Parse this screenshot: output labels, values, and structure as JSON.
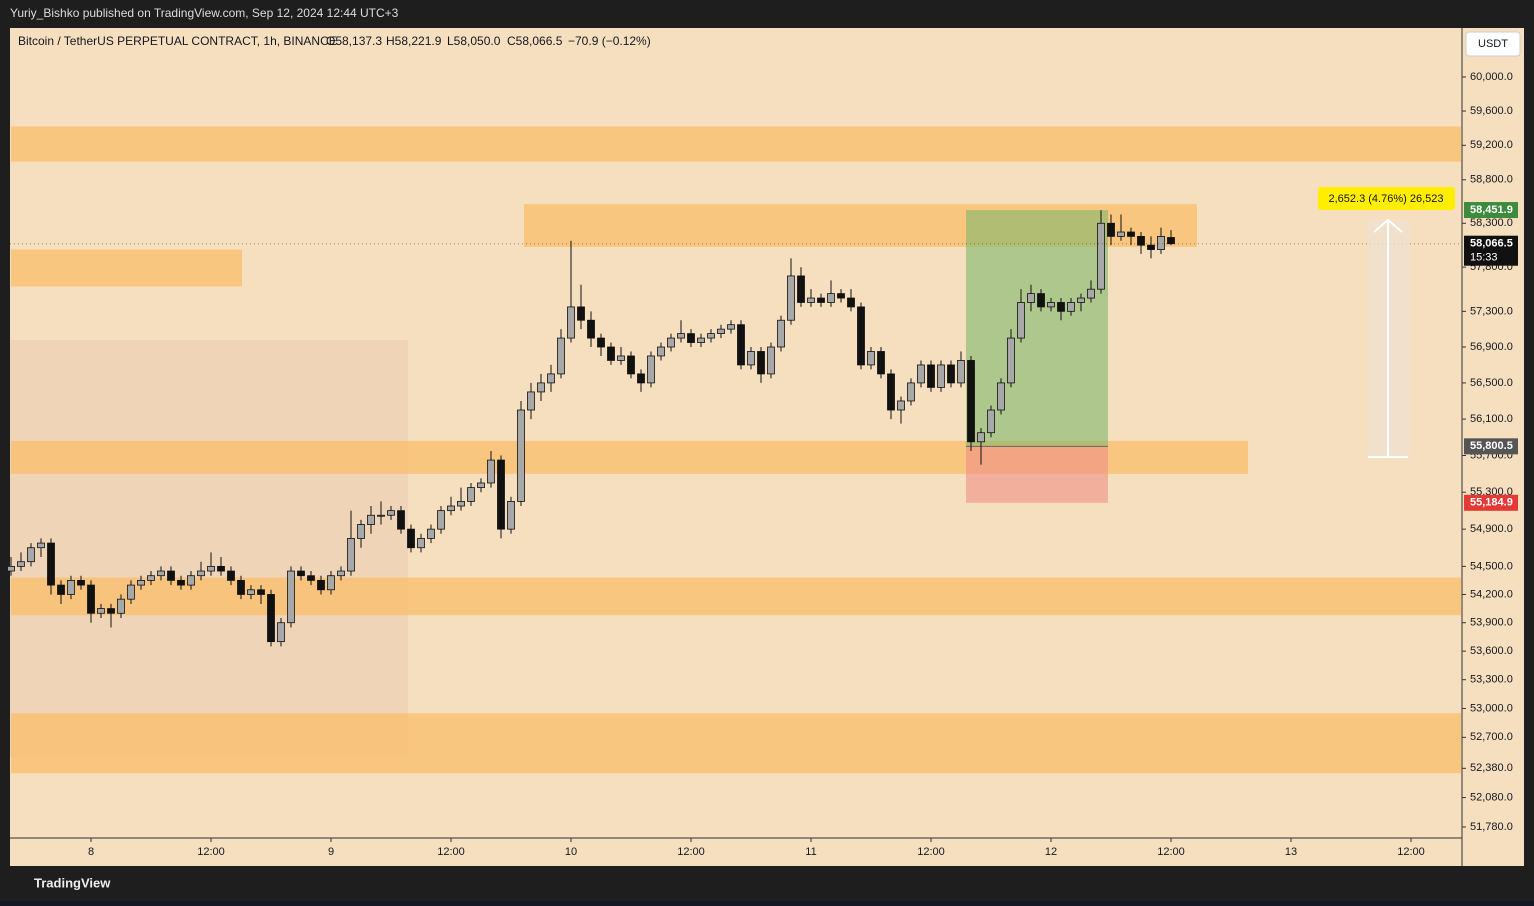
{
  "header": {
    "publisher": "Yuriy_Bishko published on TradingView.com, Sep 12, 2024 12:44 UTC+3",
    "footer": "TradingView",
    "currency": "USDT"
  },
  "chart_data": {
    "type": "candlestick",
    "title": "Bitcoin / TetherUS PERPETUAL CONTRACT, 1h, BINANCE",
    "ohlc_labels": [
      "O58,137.3",
      "H58,221.9",
      "L58,050.0",
      "C58,066.5",
      "−70.9 (−0.12%)"
    ],
    "log_scale": true,
    "grid": false,
    "up_color": "#a8a8a8",
    "down_color": "#111111",
    "ylim": [
      51668,
      60580
    ],
    "yticks": [
      {
        "value": 60000,
        "label": "60,000.0"
      },
      {
        "value": 59600,
        "label": "59,600.0"
      },
      {
        "value": 59200,
        "label": "59,200.0"
      },
      {
        "value": 58800,
        "label": "58,800.0"
      },
      {
        "value": 58300,
        "label": "58,300.0"
      },
      {
        "value": 57800,
        "label": "57,800.0"
      },
      {
        "value": 57300,
        "label": "57,300.0"
      },
      {
        "value": 56900,
        "label": "56,900.0"
      },
      {
        "value": 56500,
        "label": "56,500.0"
      },
      {
        "value": 56100,
        "label": "56,100.0"
      },
      {
        "value": 55700,
        "label": "55,700.0"
      },
      {
        "value": 55300,
        "label": "55,300.0"
      },
      {
        "value": 54900,
        "label": "54,900.0"
      },
      {
        "value": 54500,
        "label": "54,500.0"
      },
      {
        "value": 54200,
        "label": "54,200.0"
      },
      {
        "value": 53900,
        "label": "53,900.0"
      },
      {
        "value": 53600,
        "label": "53,600.0"
      },
      {
        "value": 53300,
        "label": "53,300.0"
      },
      {
        "value": 53000,
        "label": "53,000.0"
      },
      {
        "value": 52700,
        "label": "52,700.0"
      },
      {
        "value": 52380,
        "label": "52,380.0"
      },
      {
        "value": 52080,
        "label": "52,080.0"
      },
      {
        "value": 51780,
        "label": "51,780.0"
      }
    ],
    "xticks": [
      {
        "value": 8,
        "label": "8"
      },
      {
        "value": 20,
        "label": "12:00"
      },
      {
        "value": 32,
        "label": "9"
      },
      {
        "value": 44,
        "label": "12:00"
      },
      {
        "value": 56,
        "label": "10"
      },
      {
        "value": 68,
        "label": "12:00"
      },
      {
        "value": 80,
        "label": "11"
      },
      {
        "value": 92,
        "label": "12:00"
      },
      {
        "value": 104,
        "label": "12"
      },
      {
        "value": 116,
        "label": "12:00"
      },
      {
        "value": 128,
        "label": "13"
      },
      {
        "value": 140,
        "label": "12:00"
      }
    ],
    "candles": [
      [
        54450,
        54600,
        54400,
        54500
      ],
      [
        54500,
        54650,
        54450,
        54550
      ],
      [
        54550,
        54750,
        54500,
        54700
      ],
      [
        54700,
        54800,
        54600,
        54750
      ],
      [
        54750,
        54800,
        54200,
        54300
      ],
      [
        54300,
        54350,
        54100,
        54200
      ],
      [
        54200,
        54400,
        54150,
        54350
      ],
      [
        54350,
        54400,
        54250,
        54300
      ],
      [
        54300,
        54350,
        53900,
        54000
      ],
      [
        54000,
        54100,
        53950,
        54050
      ],
      [
        54050,
        54100,
        53850,
        54000
      ],
      [
        54000,
        54200,
        53950,
        54150
      ],
      [
        54150,
        54350,
        54100,
        54300
      ],
      [
        54300,
        54400,
        54250,
        54350
      ],
      [
        54350,
        54450,
        54300,
        54400
      ],
      [
        54400,
        54500,
        54350,
        54450
      ],
      [
        54450,
        54500,
        54300,
        54350
      ],
      [
        54350,
        54400,
        54250,
        54300
      ],
      [
        54300,
        54450,
        54250,
        54400
      ],
      [
        54400,
        54550,
        54350,
        54450
      ],
      [
        54450,
        54650,
        54400,
        54500
      ],
      [
        54500,
        54600,
        54400,
        54450
      ],
      [
        54450,
        54500,
        54300,
        54350
      ],
      [
        54350,
        54400,
        54150,
        54200
      ],
      [
        54200,
        54300,
        54150,
        54250
      ],
      [
        54250,
        54300,
        54100,
        54200
      ],
      [
        54200,
        54250,
        53650,
        53700
      ],
      [
        53700,
        53950,
        53650,
        53900
      ],
      [
        53900,
        54500,
        53850,
        54450
      ],
      [
        54450,
        54500,
        54350,
        54400
      ],
      [
        54400,
        54450,
        54300,
        54350
      ],
      [
        54350,
        54400,
        54200,
        54250
      ],
      [
        54250,
        54450,
        54200,
        54400
      ],
      [
        54400,
        54500,
        54350,
        54450
      ],
      [
        54450,
        55100,
        54400,
        54800
      ],
      [
        54800,
        55000,
        54700,
        54950
      ],
      [
        54950,
        55150,
        54850,
        55050
      ],
      [
        55050,
        55200,
        54950,
        55050
      ],
      [
        55050,
        55150,
        55000,
        55100
      ],
      [
        55100,
        55150,
        54850,
        54900
      ],
      [
        54900,
        54950,
        54650,
        54700
      ],
      [
        54700,
        54850,
        54650,
        54800
      ],
      [
        54800,
        54950,
        54750,
        54900
      ],
      [
        54900,
        55150,
        54850,
        55100
      ],
      [
        55100,
        55250,
        55050,
        55150
      ],
      [
        55150,
        55350,
        55100,
        55200
      ],
      [
        55200,
        55400,
        55150,
        55350
      ],
      [
        55350,
        55450,
        55300,
        55400
      ],
      [
        55400,
        55750,
        55350,
        55650
      ],
      [
        55650,
        55700,
        54800,
        54900
      ],
      [
        54900,
        55250,
        54850,
        55200
      ],
      [
        55200,
        56300,
        55150,
        56200
      ],
      [
        56200,
        56500,
        56100,
        56400
      ],
      [
        56400,
        56600,
        56300,
        56500
      ],
      [
        56500,
        56700,
        56400,
        56600
      ],
      [
        56600,
        57100,
        56550,
        57000
      ],
      [
        57000,
        58100,
        56950,
        57350
      ],
      [
        57350,
        57600,
        57100,
        57200
      ],
      [
        57200,
        57300,
        56900,
        57000
      ],
      [
        57000,
        57050,
        56800,
        56900
      ],
      [
        56900,
        56950,
        56700,
        56750
      ],
      [
        56750,
        56900,
        56700,
        56800
      ],
      [
        56800,
        56850,
        56550,
        56600
      ],
      [
        56600,
        56650,
        56400,
        56500
      ],
      [
        56500,
        56850,
        56450,
        56800
      ],
      [
        56800,
        56950,
        56750,
        56900
      ],
      [
        56900,
        57050,
        56850,
        57000
      ],
      [
        57000,
        57200,
        56950,
        57050
      ],
      [
        57050,
        57100,
        56900,
        56950
      ],
      [
        56950,
        57050,
        56900,
        57000
      ],
      [
        57000,
        57100,
        56950,
        57050
      ],
      [
        57050,
        57150,
        57000,
        57100
      ],
      [
        57100,
        57200,
        57050,
        57150
      ],
      [
        57150,
        57200,
        56650,
        56700
      ],
      [
        56700,
        56900,
        56650,
        56850
      ],
      [
        56850,
        56900,
        56500,
        56600
      ],
      [
        56600,
        56950,
        56550,
        56900
      ],
      [
        56900,
        57250,
        56850,
        57200
      ],
      [
        57200,
        57900,
        57150,
        57700
      ],
      [
        57700,
        57800,
        57350,
        57400
      ],
      [
        57400,
        57550,
        57350,
        57450
      ],
      [
        57450,
        57500,
        57350,
        57400
      ],
      [
        57400,
        57650,
        57350,
        57500
      ],
      [
        57500,
        57550,
        57400,
        57450
      ],
      [
        57450,
        57550,
        57300,
        57350
      ],
      [
        57350,
        57400,
        56650,
        56700
      ],
      [
        56700,
        56900,
        56650,
        56850
      ],
      [
        56850,
        56900,
        56550,
        56600
      ],
      [
        56600,
        56650,
        56100,
        56200
      ],
      [
        56200,
        56350,
        56050,
        56300
      ],
      [
        56300,
        56550,
        56250,
        56500
      ],
      [
        56500,
        56750,
        56450,
        56700
      ],
      [
        56700,
        56750,
        56400,
        56450
      ],
      [
        56450,
        56750,
        56400,
        56700
      ],
      [
        56700,
        56750,
        56450,
        56500
      ],
      [
        56500,
        56850,
        56450,
        56750
      ],
      [
        56750,
        56800,
        55750,
        55850
      ],
      [
        55850,
        56000,
        55600,
        55950
      ],
      [
        55950,
        56250,
        55900,
        56200
      ],
      [
        56200,
        56550,
        56150,
        56500
      ],
      [
        56500,
        57100,
        56450,
        57000
      ],
      [
        57000,
        57550,
        56950,
        57400
      ],
      [
        57400,
        57600,
        57300,
        57500
      ],
      [
        57500,
        57550,
        57300,
        57350
      ],
      [
        57350,
        57450,
        57300,
        57400
      ],
      [
        57400,
        57450,
        57200,
        57300
      ],
      [
        57300,
        57450,
        57250,
        57400
      ],
      [
        57400,
        57500,
        57300,
        57450
      ],
      [
        57450,
        57650,
        57400,
        57550
      ],
      [
        57550,
        58450,
        57500,
        58300
      ],
      [
        58300,
        58400,
        58050,
        58150
      ],
      [
        58150,
        58400,
        58100,
        58200
      ],
      [
        58200,
        58250,
        58050,
        58150
      ],
      [
        58150,
        58200,
        57950,
        58050
      ],
      [
        58050,
        58150,
        57900,
        58000
      ],
      [
        58000,
        58250,
        57950,
        58150
      ],
      [
        58137.3,
        58221.9,
        58050,
        58066.5
      ]
    ],
    "zones": [
      {
        "top": 59420,
        "bottom": 59010,
        "from": 0,
        "to": 145
      },
      {
        "top": 58000,
        "bottom": 57580,
        "from": 0,
        "to": 23.1
      },
      {
        "top": 58520,
        "bottom": 58030,
        "from": 51.3,
        "to": 118.6
      },
      {
        "top": 55860,
        "bottom": 55500,
        "from": 0,
        "to": 123.7
      },
      {
        "top": 54380,
        "bottom": 53980,
        "from": 0,
        "to": 145
      },
      {
        "top": 52950,
        "bottom": 52330,
        "from": 0,
        "to": 145
      }
    ],
    "zone_color": "#f9bd6a",
    "position": {
      "entry": 55800.5,
      "target": 58451.9,
      "stop": 55184.9,
      "from": 95.5,
      "to": 109.7,
      "value_labels": {
        "entry": "55,800.5",
        "target": "58,451.9",
        "stop": "55,184.9"
      }
    },
    "last_price": {
      "value": 58066.5,
      "label": "58,066.5",
      "countdown": "15:33"
    },
    "measure": {
      "label": "2,652.3 (4.76%) 26,523"
    }
  }
}
